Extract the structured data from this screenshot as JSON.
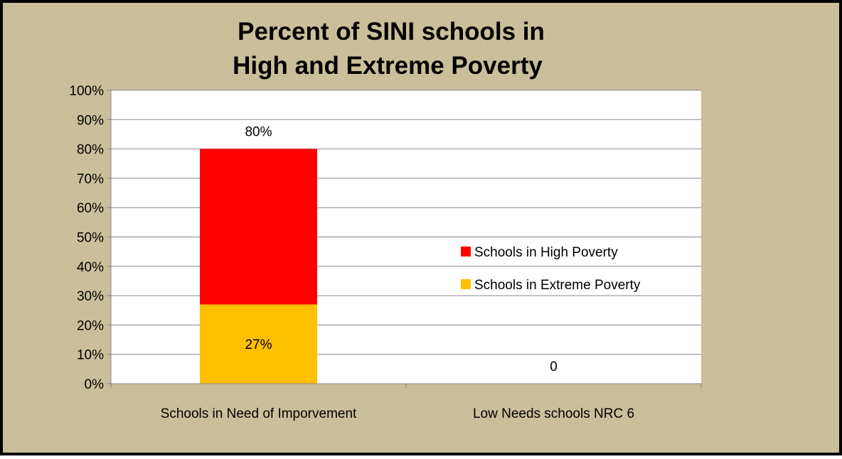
{
  "chart_data": {
    "type": "bar",
    "stacked": true,
    "title_lines": [
      "Percent of SINI schools in",
      "High and Extreme Poverty"
    ],
    "categories": [
      "Schools in Need of Imporvement",
      "Low Needs schools NRC 6"
    ],
    "series": [
      {
        "name": "Schools in Extreme Poverty",
        "color": "#FFC000",
        "values": [
          0.27,
          0
        ]
      },
      {
        "name": "Schools in High Poverty",
        "color": "#FF0000",
        "values": [
          0.53,
          0
        ]
      }
    ],
    "data_labels": [
      {
        "category": 0,
        "series": 0,
        "text": "27%"
      },
      {
        "category": 0,
        "series": "top",
        "text": "80%"
      },
      {
        "category": 1,
        "series": "top",
        "text": "0"
      }
    ],
    "legend_order": [
      "Schools in High Poverty",
      "Schools in Extreme Poverty"
    ],
    "y_ticks": [
      "0%",
      "10%",
      "20%",
      "30%",
      "40%",
      "50%",
      "60%",
      "70%",
      "80%",
      "90%",
      "100%"
    ],
    "ylim": [
      0,
      1
    ],
    "grid": true,
    "legend_position": "right",
    "background_color": "#C9BF9A",
    "plot_background_color": "#FFFFFF"
  }
}
